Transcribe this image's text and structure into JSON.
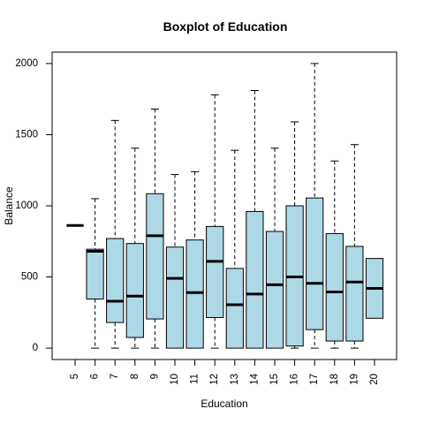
{
  "chart_data": {
    "type": "boxplot",
    "title": "Boxplot of Education",
    "xlabel": "Education",
    "ylabel": "Balance",
    "ylim": [
      -80,
      2080
    ],
    "y_ticks": [
      0,
      500,
      1000,
      1500,
      2000
    ],
    "grid": false,
    "legend": "none",
    "box_fill": "#add8e6",
    "categories": [
      "5",
      "6",
      "7",
      "8",
      "9",
      "10",
      "11",
      "12",
      "13",
      "14",
      "15",
      "16",
      "17",
      "18",
      "19",
      "20"
    ],
    "boxes": [
      {
        "category": "5",
        "min": 862,
        "q1": 862,
        "median": 862,
        "q3": 862,
        "max": 862
      },
      {
        "category": "6",
        "min": 0,
        "q1": 345,
        "median": 680,
        "q3": 695,
        "max": 1050
      },
      {
        "category": "7",
        "min": 0,
        "q1": 180,
        "median": 330,
        "q3": 770,
        "max": 1600
      },
      {
        "category": "8",
        "min": 0,
        "q1": 75,
        "median": 365,
        "q3": 735,
        "max": 1405
      },
      {
        "category": "9",
        "min": 0,
        "q1": 205,
        "median": 790,
        "q3": 1085,
        "max": 1680
      },
      {
        "category": "10",
        "min": 0,
        "q1": 0,
        "median": 490,
        "q3": 710,
        "max": 1220
      },
      {
        "category": "11",
        "min": 0,
        "q1": 0,
        "median": 390,
        "q3": 760,
        "max": 1240
      },
      {
        "category": "12",
        "min": 0,
        "q1": 215,
        "median": 610,
        "q3": 855,
        "max": 1780
      },
      {
        "category": "13",
        "min": 0,
        "q1": 0,
        "median": 305,
        "q3": 560,
        "max": 1390
      },
      {
        "category": "14",
        "min": 0,
        "q1": 0,
        "median": 380,
        "q3": 960,
        "max": 1810
      },
      {
        "category": "15",
        "min": 0,
        "q1": 0,
        "median": 445,
        "q3": 820,
        "max": 1405
      },
      {
        "category": "16",
        "min": 0,
        "q1": 15,
        "median": 500,
        "q3": 1000,
        "max": 1590
      },
      {
        "category": "17",
        "min": 0,
        "q1": 130,
        "median": 455,
        "q3": 1055,
        "max": 2000
      },
      {
        "category": "18",
        "min": 0,
        "q1": 50,
        "median": 395,
        "q3": 805,
        "max": 1315
      },
      {
        "category": "19",
        "min": 0,
        "q1": 50,
        "median": 465,
        "q3": 715,
        "max": 1430
      },
      {
        "category": "20",
        "min": 210,
        "q1": 210,
        "median": 420,
        "q3": 630,
        "max": 630
      }
    ]
  }
}
